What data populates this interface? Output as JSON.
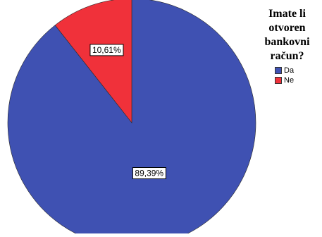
{
  "chart_data": {
    "type": "pie",
    "legend_title_lines": [
      "Imate li",
      "otvoren",
      "bankovni",
      "račun?"
    ],
    "legend_position": "top-right",
    "slices": [
      {
        "name": "Da",
        "value": 89.39,
        "label": "89,39%",
        "color": "#3f51b2"
      },
      {
        "name": "Ne",
        "value": 10.61,
        "label": "10,61%",
        "color": "#f0313a"
      }
    ]
  }
}
